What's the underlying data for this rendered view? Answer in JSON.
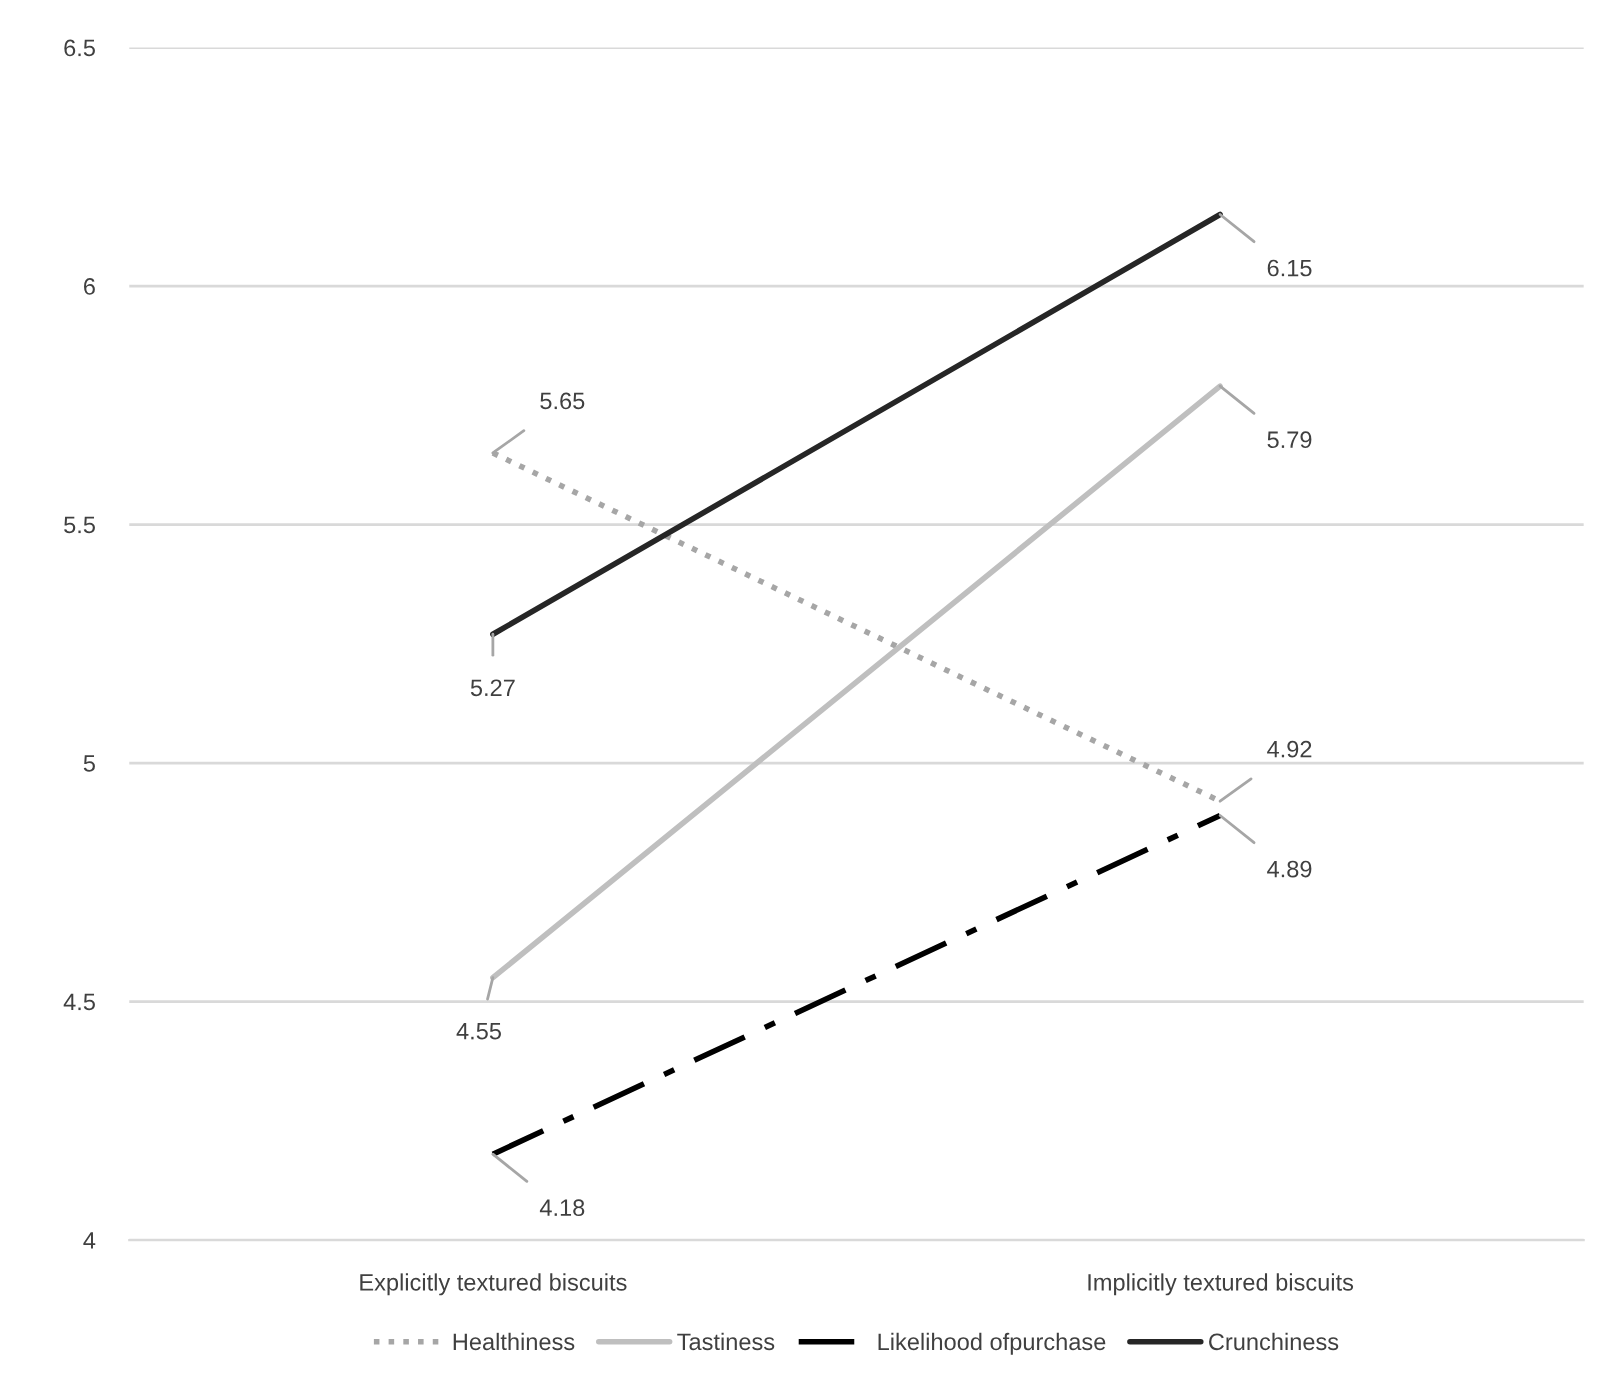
{
  "chart_data": {
    "type": "line",
    "categories": [
      "Explicitly textured biscuits",
      "Implicitly textured biscuits"
    ],
    "series": [
      {
        "name": "Healthiness",
        "color": "#a6a6a6",
        "line_style": "dotted",
        "values": [
          5.65,
          4.92
        ]
      },
      {
        "name": "Tastiness",
        "color": "#bfbfbf",
        "line_style": "solid",
        "values": [
          4.55,
          5.79
        ]
      },
      {
        "name": "Likelihood ofpurchase",
        "color": "#000000",
        "line_style": "dashdot",
        "values": [
          4.18,
          4.89
        ]
      },
      {
        "name": "Crunchiness",
        "color": "#262626",
        "line_style": "solid",
        "values": [
          5.27,
          6.15
        ]
      }
    ],
    "ylim": [
      4,
      6.5
    ],
    "yticks": [
      4,
      4.5,
      5,
      5.5,
      6,
      6.5
    ],
    "grid": "y",
    "legend": "bottom",
    "marker": "none",
    "data_labels": true
  }
}
